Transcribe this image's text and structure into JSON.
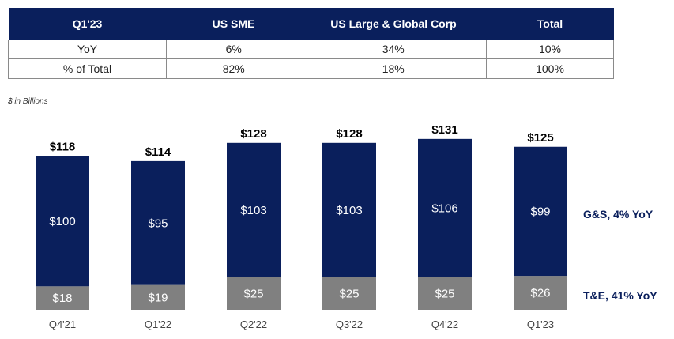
{
  "table": {
    "headers": [
      "Q1'23",
      "US SME",
      "US Large & Global Corp",
      "Total"
    ],
    "rows": [
      [
        "YoY",
        "6%",
        "34%",
        "10%"
      ],
      [
        "% of Total",
        "82%",
        "18%",
        "100%"
      ]
    ]
  },
  "unit_note": "$ in Billions",
  "colors": {
    "navy": "#0a1f5c",
    "gray": "#808080"
  },
  "chart_data": {
    "type": "bar",
    "stacked": true,
    "categories": [
      "Q4'21",
      "Q1'22",
      "Q2'22",
      "Q3'22",
      "Q4'22",
      "Q1'23"
    ],
    "series": [
      {
        "name": "T&E, 41% YoY",
        "values": [
          18,
          19,
          25,
          25,
          25,
          26
        ],
        "labels": [
          "$18",
          "$19",
          "$25",
          "$25",
          "$25",
          "$26"
        ]
      },
      {
        "name": "G&S, 4% YoY",
        "values": [
          100,
          95,
          103,
          103,
          106,
          99
        ],
        "labels": [
          "$100",
          "$95",
          "$103",
          "$103",
          "$106",
          "$99"
        ]
      }
    ],
    "totals": [
      118,
      114,
      128,
      128,
      131,
      125
    ],
    "total_labels": [
      "$118",
      "$114",
      "$128",
      "$128",
      "$131",
      "$125"
    ],
    "ylabel": "$ in Billions",
    "ylim": [
      0,
      131
    ]
  }
}
